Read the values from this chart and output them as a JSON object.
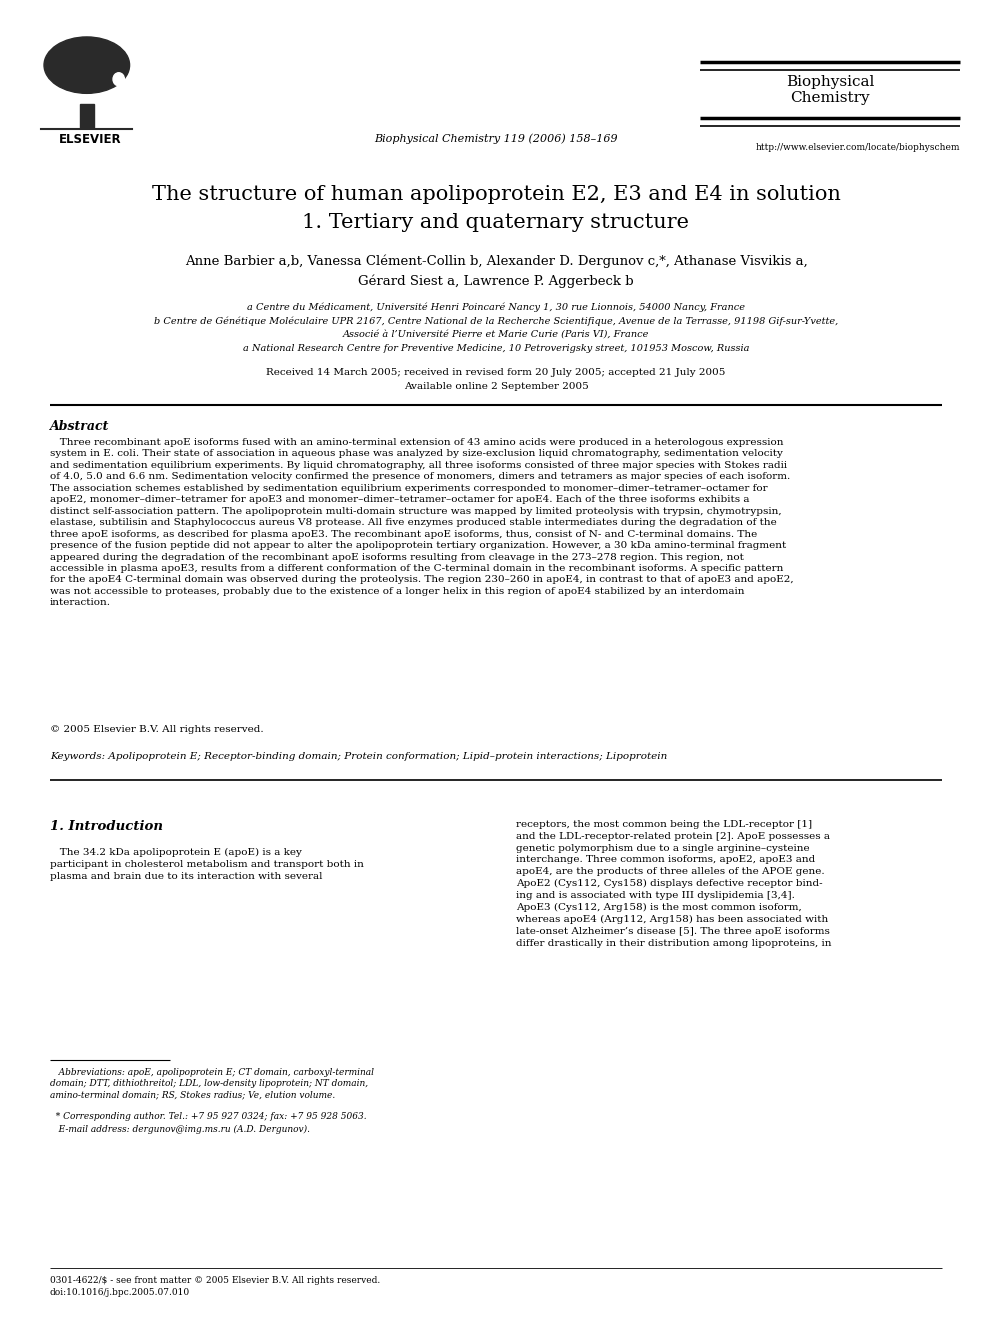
{
  "page_width": 9.92,
  "page_height": 13.23,
  "background_color": "#ffffff",
  "journal_name": "Biophysical\nChemistry",
  "journal_citation": "Biophysical Chemistry 119 (2006) 158–169",
  "journal_url": "http://www.elsevier.com/locate/biophyschem",
  "title_line1": "The structure of human apolipoprotein E2, E3 and E4 in solution",
  "title_line2": "1. Tertiary and quaternary structure",
  "authors_line1": "Anne Barbier a,b, Vanessa Clément-Collin b, Alexander D. Dergunov c,*, Athanase Visvikis a,",
  "authors_line2": "Gérard Siest a, Lawrence P. Aggerbeck b",
  "affil_a": "a Centre du Médicament, Université Henri Poincaré Nancy 1, 30 rue Lionnois, 54000 Nancy, France",
  "affil_b": "b Centre de Génétique Moléculaire UPR 2167, Centre National de la Recherche Scientifique, Avenue de la Terrasse, 91198 Gif-sur-Yvette,",
  "affil_b2": "Associé à l’Université Pierre et Marie Curie (Paris VI), France",
  "affil_c": "a National Research Centre for Preventive Medicine, 10 Petroverigsky street, 101953 Moscow, Russia",
  "received": "Received 14 March 2005; received in revised form 20 July 2005; accepted 21 July 2005",
  "available": "Available online 2 September 2005",
  "abstract_title": "Abstract",
  "abstract_text": "   Three recombinant apoE isoforms fused with an amino-terminal extension of 43 amino acids were produced in a heterologous expression\nsystem in E. coli. Their state of association in aqueous phase was analyzed by size-exclusion liquid chromatography, sedimentation velocity\nand sedimentation equilibrium experiments. By liquid chromatography, all three isoforms consisted of three major species with Stokes radii\nof 4.0, 5.0 and 6.6 nm. Sedimentation velocity confirmed the presence of monomers, dimers and tetramers as major species of each isoform.\nThe association schemes established by sedimentation equilibrium experiments corresponded to monomer–dimer–tetramer–octamer for\napoE2, monomer–dimer–tetramer for apoE3 and monomer–dimer–tetramer–octamer for apoE4. Each of the three isoforms exhibits a\ndistinct self-association pattern. The apolipoprotein multi-domain structure was mapped by limited proteolysis with trypsin, chymotrypsin,\nelastase, subtilisin and Staphylococcus aureus V8 protease. All five enzymes produced stable intermediates during the degradation of the\nthree apoE isoforms, as described for plasma apoE3. The recombinant apoE isoforms, thus, consist of N- and C-terminal domains. The\npresence of the fusion peptide did not appear to alter the apolipoprotein tertiary organization. However, a 30 kDa amino-terminal fragment\nappeared during the degradation of the recombinant apoE isoforms resulting from cleavage in the 273–278 region. This region, not\naccessible in plasma apoE3, results from a different conformation of the C-terminal domain in the recombinant isoforms. A specific pattern\nfor the apoE4 C-terminal domain was observed during the proteolysis. The region 230–260 in apoE4, in contrast to that of apoE3 and apoE2,\nwas not accessible to proteases, probably due to the existence of a longer helix in this region of apoE4 stabilized by an interdomain\ninteraction.",
  "copyright": "© 2005 Elsevier B.V. All rights reserved.",
  "keywords": "Keywords: Apolipoprotein E; Receptor-binding domain; Protein conformation; Lipid–protein interactions; Lipoprotein",
  "intro_title": "1. Introduction",
  "intro_text_left": "   The 34.2 kDa apolipoprotein E (apoE) is a key\nparticipant in cholesterol metabolism and transport both in\nplasma and brain due to its interaction with several",
  "intro_text_right": "receptors, the most common being the LDL-receptor [1]\nand the LDL-receptor-related protein [2]. ApoE possesses a\ngenetic polymorphism due to a single arginine–cysteine\ninterchange. Three common isoforms, apoE2, apoE3 and\napoE4, are the products of three alleles of the APOE gene.\nApoE2 (Cys112, Cys158) displays defective receptor bind-\ning and is associated with type III dyslipidemia [3,4].\nApoE3 (Cys112, Arg158) is the most common isoform,\nwhereas apoE4 (Arg112, Arg158) has been associated with\nlate-onset Alzheimer’s disease [5]. The three apoE isoforms\ndiffer drastically in their distribution among lipoproteins, in",
  "footnote_abbrev": "   Abbreviations: apoE, apolipoprotein E; CT domain, carboxyl-terminal\ndomain; DTT, dithiothreitol; LDL, low-density lipoprotein; NT domain,\namino-terminal domain; RS, Stokes radius; Ve, elution volume.",
  "footnote_corresponding": "  * Corresponding author. Tel.: +7 95 927 0324; fax: +7 95 928 5063.",
  "footnote_email": "   E-mail address: dergunov@img.ms.ru (A.D. Dergunov).",
  "footnote_issn": "0301-4622/$ - see front matter © 2005 Elsevier B.V. All rights reserved.",
  "footnote_doi": "doi:10.1016/j.bpc.2005.07.010"
}
